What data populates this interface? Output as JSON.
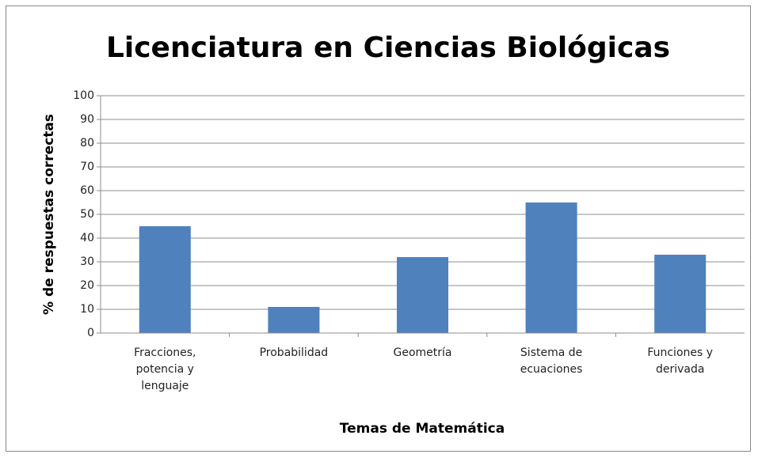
{
  "chart_data": {
    "type": "bar",
    "title": "Licenciatura en Ciencias Biológicas",
    "x_label": "Temas de Matemática",
    "y_label": "% de respuestas correctas",
    "categories": [
      "Fracciones, potencia y lenguaje",
      "Probabilidad",
      "Geometría",
      "Sistema de ecuaciones",
      "Funciones y derivada"
    ],
    "values": [
      45,
      11,
      32,
      55,
      33
    ],
    "color": "#4f81bd",
    "ylim": [
      0,
      100
    ],
    "yticks": [
      0,
      10,
      20,
      30,
      40,
      50,
      60,
      70,
      80,
      90,
      100
    ],
    "grid": true
  }
}
